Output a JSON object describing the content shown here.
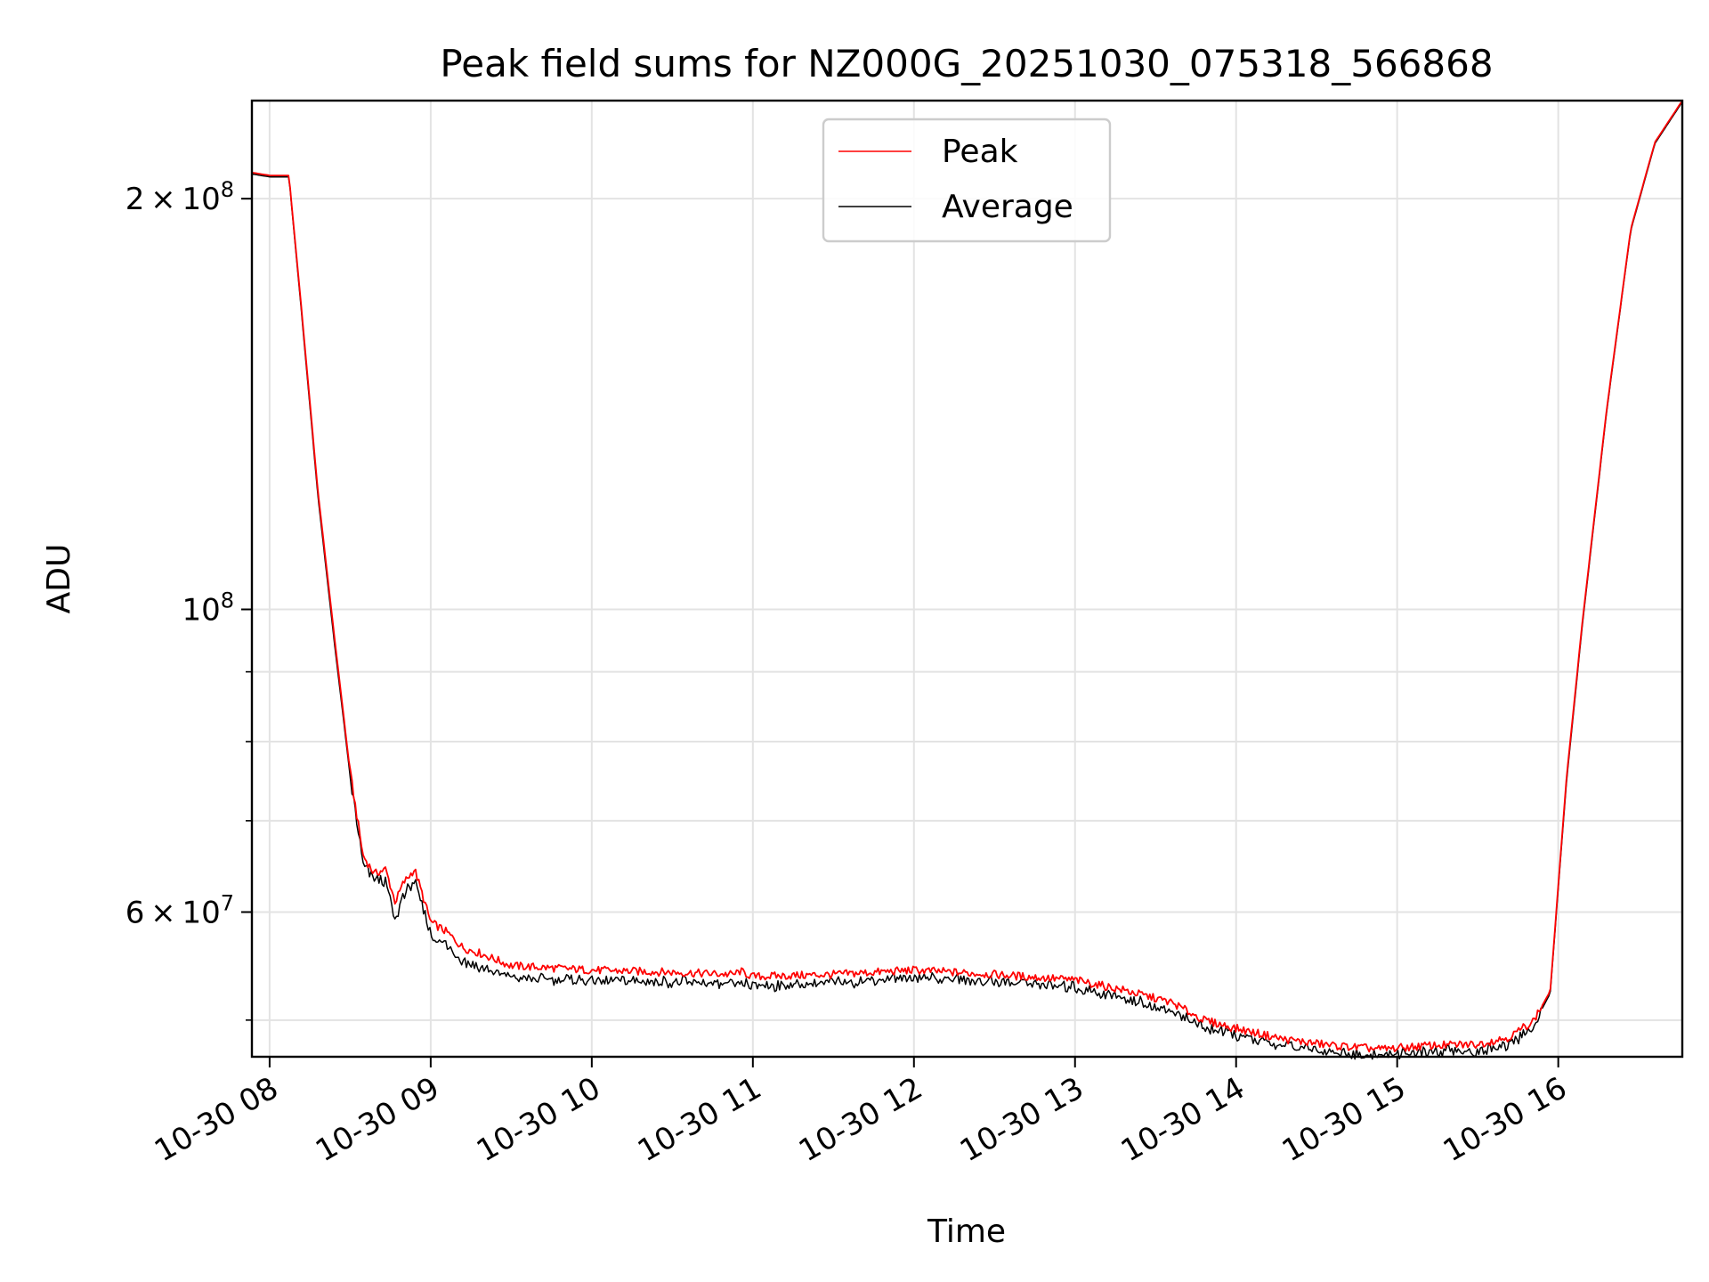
{
  "chart_data": {
    "type": "line",
    "title": "Peak field sums for NZ000G_20251030_075318_566868",
    "xlabel": "Time",
    "ylabel": "ADU",
    "y_scale": "log",
    "ylim": [
      47000000,
      236000000
    ],
    "xlim_hours": [
      7.89,
      16.77
    ],
    "grid": true,
    "legend_position": "upper center",
    "x_ticks": [
      {
        "hour": 8,
        "label": "10-30 08"
      },
      {
        "hour": 9,
        "label": "10-30 09"
      },
      {
        "hour": 10,
        "label": "10-30 10"
      },
      {
        "hour": 11,
        "label": "10-30 11"
      },
      {
        "hour": 12,
        "label": "10-30 12"
      },
      {
        "hour": 13,
        "label": "10-30 13"
      },
      {
        "hour": 14,
        "label": "10-30 14"
      },
      {
        "hour": 15,
        "label": "10-30 15"
      },
      {
        "hour": 16,
        "label": "10-30 16"
      }
    ],
    "y_major_ticks": [
      {
        "value": 200000000,
        "mantissa": "2",
        "exponent": "8"
      },
      {
        "value": 100000000,
        "mantissa": "",
        "exponent": "8"
      },
      {
        "value": 60000000,
        "mantissa": "6",
        "exponent": "7"
      }
    ],
    "y_minor_gridlines": [
      50000000,
      70000000,
      80000000,
      90000000
    ],
    "series": [
      {
        "name": "Peak",
        "color": "#ff0000",
        "x_hours": [
          7.89,
          8.0,
          8.12,
          8.2,
          8.3,
          8.4,
          8.5,
          8.58,
          8.65,
          8.72,
          8.78,
          8.83,
          8.9,
          9.0,
          9.1,
          9.2,
          9.3,
          9.5,
          9.75,
          10.0,
          10.5,
          10.88,
          10.92,
          11.0,
          11.5,
          12.0,
          12.5,
          13.0,
          13.3,
          13.6,
          13.8,
          14.0,
          14.3,
          14.6,
          14.9,
          15.2,
          15.5,
          15.7,
          15.85,
          15.95,
          16.05,
          16.15,
          16.3,
          16.45,
          16.6,
          16.77
        ],
        "values": [
          209000000,
          208000000,
          208000000,
          165000000,
          122000000,
          96000000,
          76000000,
          66000000,
          64000000,
          64500000,
          61000000,
          63000000,
          64500000,
          59000000,
          58000000,
          56500000,
          56000000,
          54800000,
          54600000,
          54400000,
          54200000,
          54000000,
          54300000,
          53800000,
          54000000,
          54400000,
          54000000,
          53500000,
          52600000,
          51500000,
          50000000,
          49300000,
          48400000,
          47900000,
          47600000,
          47900000,
          48000000,
          48600000,
          50000000,
          52500000,
          75000000,
          98000000,
          140000000,
          190000000,
          220000000,
          236000000
        ]
      },
      {
        "name": "Average",
        "color": "#000000",
        "x_hours": [
          7.89,
          8.0,
          8.12,
          8.2,
          8.3,
          8.4,
          8.5,
          8.58,
          8.65,
          8.72,
          8.78,
          8.83,
          8.9,
          9.0,
          9.1,
          9.2,
          9.3,
          9.5,
          9.75,
          10.0,
          10.5,
          10.88,
          10.92,
          11.0,
          11.5,
          12.0,
          12.5,
          13.0,
          13.3,
          13.6,
          13.8,
          14.0,
          14.3,
          14.6,
          14.9,
          15.2,
          15.5,
          15.7,
          15.85,
          15.95,
          16.05,
          16.15,
          16.3,
          16.45,
          16.6,
          16.77
        ],
        "values": [
          208500000,
          207500000,
          207500000,
          164000000,
          121000000,
          95000000,
          75500000,
          65500000,
          63500000,
          63500000,
          59500000,
          62000000,
          63500000,
          58000000,
          57000000,
          55500000,
          55000000,
          54000000,
          53800000,
          53700000,
          53600000,
          53300000,
          53500000,
          53200000,
          53500000,
          54000000,
          53600000,
          53100000,
          52200000,
          51000000,
          49600000,
          49000000,
          48100000,
          47600000,
          47300000,
          47600000,
          47700000,
          48200000,
          49700000,
          52300000,
          74500000,
          97500000,
          139500000,
          189500000,
          219500000,
          235500000
        ]
      }
    ]
  }
}
